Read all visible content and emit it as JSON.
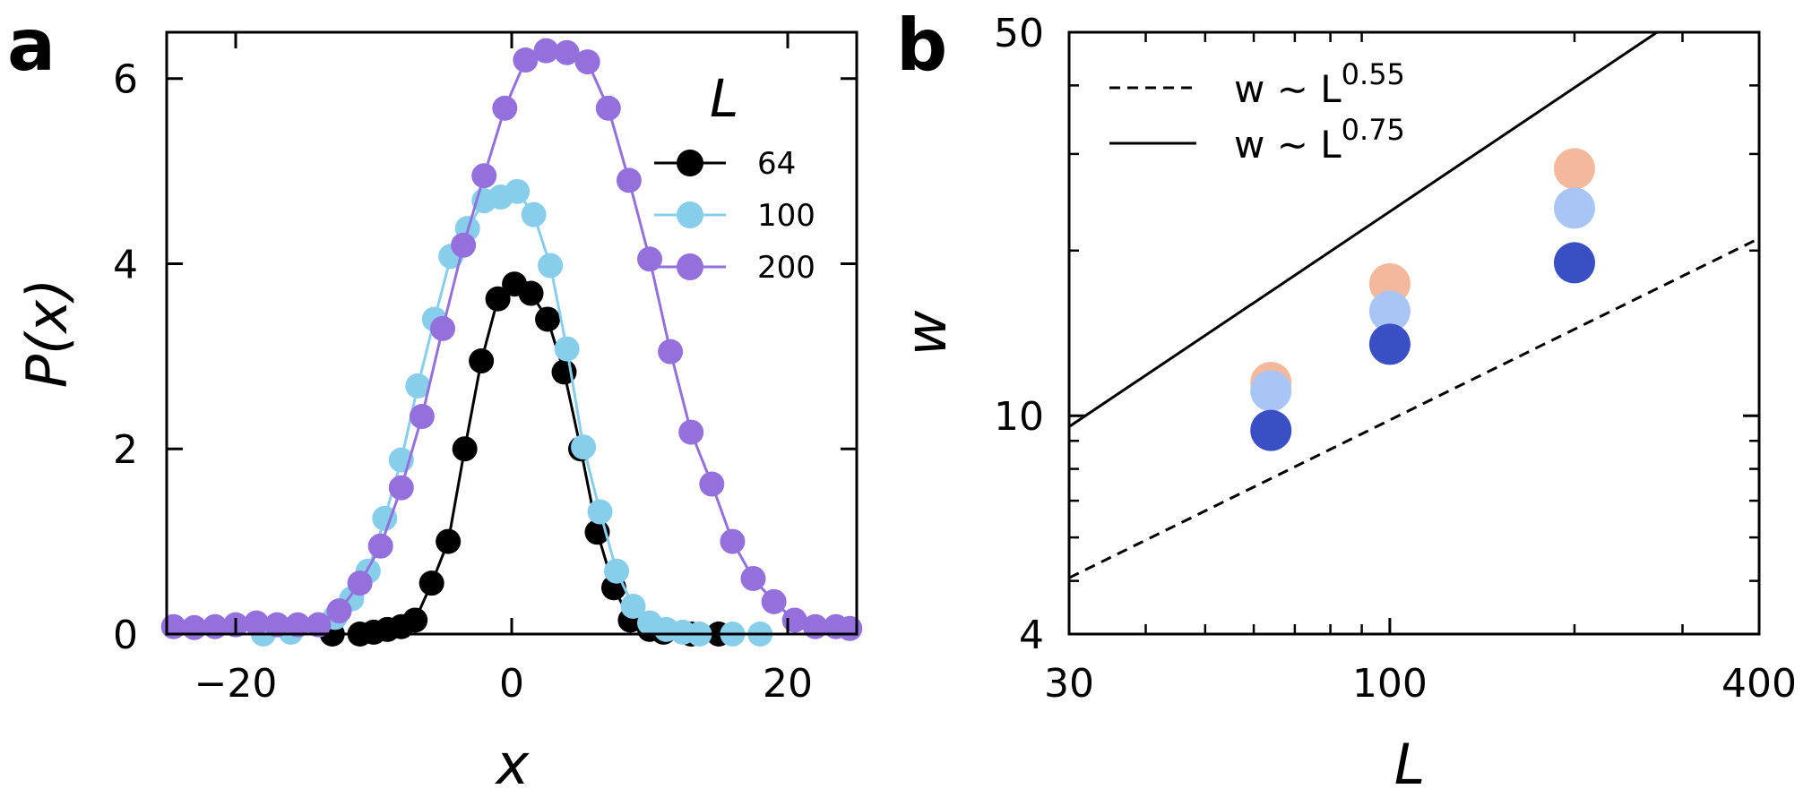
{
  "chart_data": [
    {
      "panel": "a",
      "type": "line",
      "xlabel": "x",
      "ylabel": "P(x)",
      "xlim": [
        -25,
        25
      ],
      "ylim": [
        0,
        6.5
      ],
      "xticks": [
        -20,
        0,
        20
      ],
      "xtick_labels": [
        "−20",
        "0",
        "20"
      ],
      "yticks": [
        0,
        2,
        4,
        6
      ],
      "ytick_labels": [
        "0",
        "2",
        "4",
        "6"
      ],
      "legend_title": "L",
      "legend_location": "upper-right",
      "series": [
        {
          "name": "64",
          "color": "#000000",
          "x": [
            -13,
            -11,
            -10,
            -9,
            -8,
            -7,
            -5.8,
            -4.6,
            -3.4,
            -2.2,
            -1,
            0.2,
            1.4,
            2.6,
            3.8,
            5,
            6.2,
            7.4,
            8.6,
            10,
            11,
            13,
            15
          ],
          "y": [
            0,
            0,
            0.02,
            0.05,
            0.08,
            0.15,
            0.55,
            1.0,
            2.0,
            2.95,
            3.62,
            3.78,
            3.68,
            3.4,
            2.83,
            2.0,
            1.1,
            0.5,
            0.15,
            0.05,
            0.02,
            0,
            0
          ]
        },
        {
          "name": "100",
          "color": "#87ceeb",
          "x": [
            -18,
            -16,
            -14,
            -12.8,
            -11.6,
            -10.4,
            -9.2,
            -8,
            -6.8,
            -5.6,
            -4.4,
            -3.2,
            -2,
            -0.8,
            0.4,
            1.6,
            2.8,
            4,
            5.2,
            6.4,
            7.6,
            8.8,
            10,
            11.2,
            12.4,
            13.6,
            16,
            18
          ],
          "y": [
            0,
            0.02,
            0.1,
            0.18,
            0.38,
            0.68,
            1.25,
            1.88,
            2.68,
            3.4,
            4.08,
            4.38,
            4.68,
            4.72,
            4.78,
            4.53,
            3.98,
            3.08,
            2.02,
            1.32,
            0.68,
            0.3,
            0.12,
            0.05,
            0.02,
            0,
            0,
            0
          ]
        },
        {
          "name": "200",
          "color": "#9370db",
          "x": [
            -24.5,
            -23,
            -21.5,
            -20,
            -18.5,
            -17,
            -15.5,
            -14,
            -12.5,
            -11,
            -9.5,
            -8,
            -6.5,
            -5,
            -3.5,
            -2,
            -0.5,
            1,
            2.5,
            4,
            5.5,
            7,
            8.5,
            10,
            11.5,
            13,
            14.5,
            16,
            17.5,
            19,
            20.5,
            22,
            23.5,
            24.5
          ],
          "y": [
            0.08,
            0.07,
            0.08,
            0.1,
            0.12,
            0.1,
            0.1,
            0.1,
            0.25,
            0.55,
            0.95,
            1.58,
            2.35,
            3.3,
            4.2,
            4.95,
            5.68,
            6.2,
            6.3,
            6.28,
            6.18,
            5.68,
            4.9,
            4.05,
            3.05,
            2.18,
            1.62,
            1.0,
            0.6,
            0.35,
            0.15,
            0.08,
            0.08,
            0.06
          ]
        }
      ]
    },
    {
      "panel": "b",
      "type": "scatter",
      "xlabel": "L",
      "ylabel": "w",
      "xscale": "log",
      "yscale": "log",
      "xlim": [
        30,
        400
      ],
      "ylim": [
        4,
        50
      ],
      "xtick_labels": [
        "30",
        "100",
        "400"
      ],
      "ytick_labels": [
        "4",
        "10",
        "50"
      ],
      "legend_location": "upper-left",
      "series": [
        {
          "name": "points-light-orange",
          "color": "#f4b89c",
          "x": [
            64,
            100,
            200
          ],
          "y": [
            11.5,
            17.4,
            28.2
          ]
        },
        {
          "name": "points-light-blue",
          "color": "#a9c5f5",
          "x": [
            64,
            100,
            200
          ],
          "y": [
            11.1,
            15.5,
            23.9
          ]
        },
        {
          "name": "points-dark-blue",
          "color": "#3a4fc4",
          "x": [
            64,
            100,
            200
          ],
          "y": [
            9.4,
            13.5,
            19.0
          ]
        }
      ],
      "guide_lines": [
        {
          "name": "w ~ L^0.55",
          "style": "dashed",
          "exponent": 0.55,
          "prefactor": 0.78
        },
        {
          "name": "w ~ L^0.75",
          "style": "solid",
          "exponent": 0.75,
          "prefactor": 0.745
        }
      ],
      "legend": [
        {
          "text": "w ∼ L",
          "exponent": "0.55"
        },
        {
          "text": "w ∼ L",
          "exponent": "0.75"
        }
      ]
    }
  ],
  "panel_labels": [
    "a",
    "b"
  ]
}
